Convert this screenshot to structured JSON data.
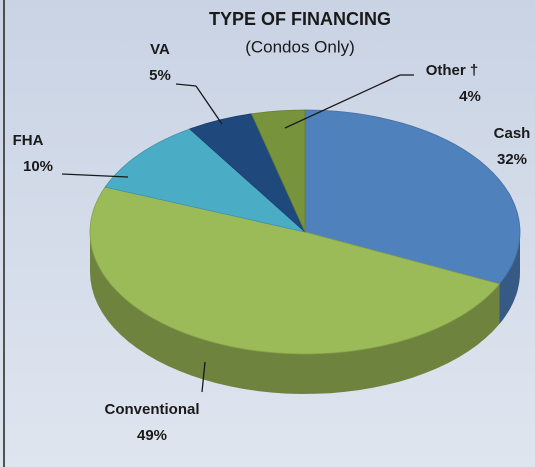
{
  "chart_data": {
    "type": "pie",
    "title": "TYPE OF FINANCING",
    "subtitle": "(Condos Only)",
    "categories": [
      "Cash",
      "Conventional",
      "FHA",
      "VA",
      "Other †"
    ],
    "values": [
      32,
      49,
      10,
      5,
      4
    ],
    "value_labels": [
      "32%",
      "49%",
      "10%",
      "5%",
      "4%"
    ],
    "colors": [
      "#4f81bd",
      "#9bbb59",
      "#4bacc6",
      "#1f497d",
      "#77933c"
    ]
  }
}
